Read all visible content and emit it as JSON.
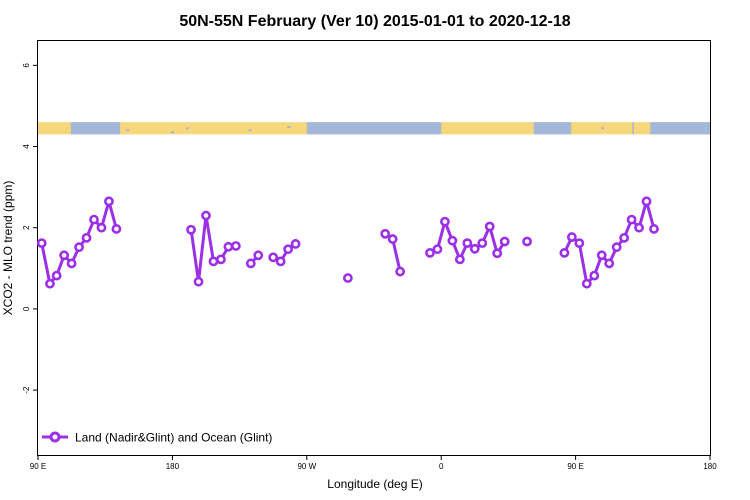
{
  "chart_data": {
    "type": "line",
    "title": "50N-55N February (Ver 10)   2015-01-01 to 2020-12-18",
    "xlabel": "Longitude (deg E)",
    "ylabel": "XCO2 - MLO trend (ppm)",
    "x_ticks": [
      {
        "value": 90,
        "label": "90 E"
      },
      {
        "value": 180,
        "label": "180"
      },
      {
        "value": 270,
        "label": "90 W"
      },
      {
        "value": 360,
        "label": "0"
      },
      {
        "value": 450,
        "label": "90 E"
      },
      {
        "value": 540,
        "label": "180"
      }
    ],
    "y_ticks": [
      {
        "value": -2,
        "label": "-2"
      },
      {
        "value": 0,
        "label": "0"
      },
      {
        "value": 2,
        "label": "2"
      },
      {
        "value": 4,
        "label": "4"
      },
      {
        "value": 6,
        "label": "6"
      }
    ],
    "xlim": [
      90,
      540
    ],
    "ylim": [
      -3.6,
      6.6
    ],
    "legend": {
      "position": "bottom-left",
      "label": "Land (Nadir&Glint) and Ocean (Glint)"
    },
    "series": [
      {
        "name": "Land (Nadir&Glint) and Ocean (Glint)",
        "color": "#9b30e8",
        "segments": [
          [
            [
              92.5,
              1.62
            ],
            [
              98,
              0.62
            ],
            [
              102.5,
              0.82
            ],
            [
              107.5,
              1.32
            ],
            [
              112.5,
              1.12
            ],
            [
              117.5,
              1.52
            ],
            [
              122.5,
              1.75
            ],
            [
              127.5,
              2.2
            ],
            [
              132.5,
              2.0
            ],
            [
              137.5,
              2.65
            ],
            [
              142.5,
              1.97
            ]
          ],
          [
            [
              192.5,
              1.95
            ],
            [
              197.5,
              0.67
            ],
            [
              202.5,
              2.3
            ],
            [
              207.5,
              1.17
            ],
            [
              212.5,
              1.22
            ],
            [
              217.5,
              1.53
            ],
            [
              222.5,
              1.55
            ]
          ],
          [
            [
              232.5,
              1.12
            ],
            [
              237.5,
              1.32
            ]
          ],
          [
            [
              247.5,
              1.27
            ],
            [
              252.5,
              1.17
            ],
            [
              257.5,
              1.47
            ],
            [
              262.5,
              1.6
            ]
          ],
          [
            [
              297.5,
              0.76
            ]
          ],
          [
            [
              322.5,
              1.85
            ],
            [
              327.5,
              1.72
            ],
            [
              332.5,
              0.92
            ]
          ],
          [
            [
              352.5,
              1.38
            ],
            [
              357.5,
              1.47
            ],
            [
              362.5,
              2.15
            ],
            [
              367.5,
              1.68
            ],
            [
              372.5,
              1.22
            ],
            [
              377.5,
              1.62
            ],
            [
              382.5,
              1.48
            ],
            [
              387.5,
              1.62
            ],
            [
              392.5,
              2.03
            ],
            [
              397.5,
              1.37
            ],
            [
              402.5,
              1.66
            ]
          ],
          [
            [
              417.5,
              1.66
            ]
          ],
          [
            [
              442.5,
              1.38
            ],
            [
              447.5,
              1.77
            ],
            [
              452.5,
              1.62
            ],
            [
              457.5,
              0.62
            ],
            [
              462.5,
              0.82
            ],
            [
              467.5,
              1.32
            ],
            [
              472.5,
              1.12
            ],
            [
              477.5,
              1.52
            ],
            [
              482.5,
              1.75
            ],
            [
              487.5,
              2.2
            ],
            [
              492.5,
              2.0
            ],
            [
              497.5,
              2.65
            ],
            [
              502.5,
              1.97
            ]
          ]
        ]
      }
    ],
    "land_ocean_strip": {
      "ocean_color": "#a3b7d8",
      "land_color": "#f6d77c",
      "y_range": [
        4.3,
        4.6
      ],
      "ocean_segments": [
        [
          112,
          145
        ],
        [
          270,
          360
        ],
        [
          422,
          447
        ],
        [
          488,
          489
        ],
        [
          500,
          545
        ]
      ],
      "ocean_dots": [
        [
          150,
          4.4
        ],
        [
          180,
          4.35
        ],
        [
          190,
          4.45
        ],
        [
          232,
          4.4
        ],
        [
          258,
          4.48
        ],
        [
          300,
          4.4
        ],
        [
          335,
          4.42
        ],
        [
          345,
          4.38
        ],
        [
          468,
          4.45
        ],
        [
          515,
          4.4
        ]
      ]
    },
    "grid": false,
    "background": "#ffffff"
  }
}
